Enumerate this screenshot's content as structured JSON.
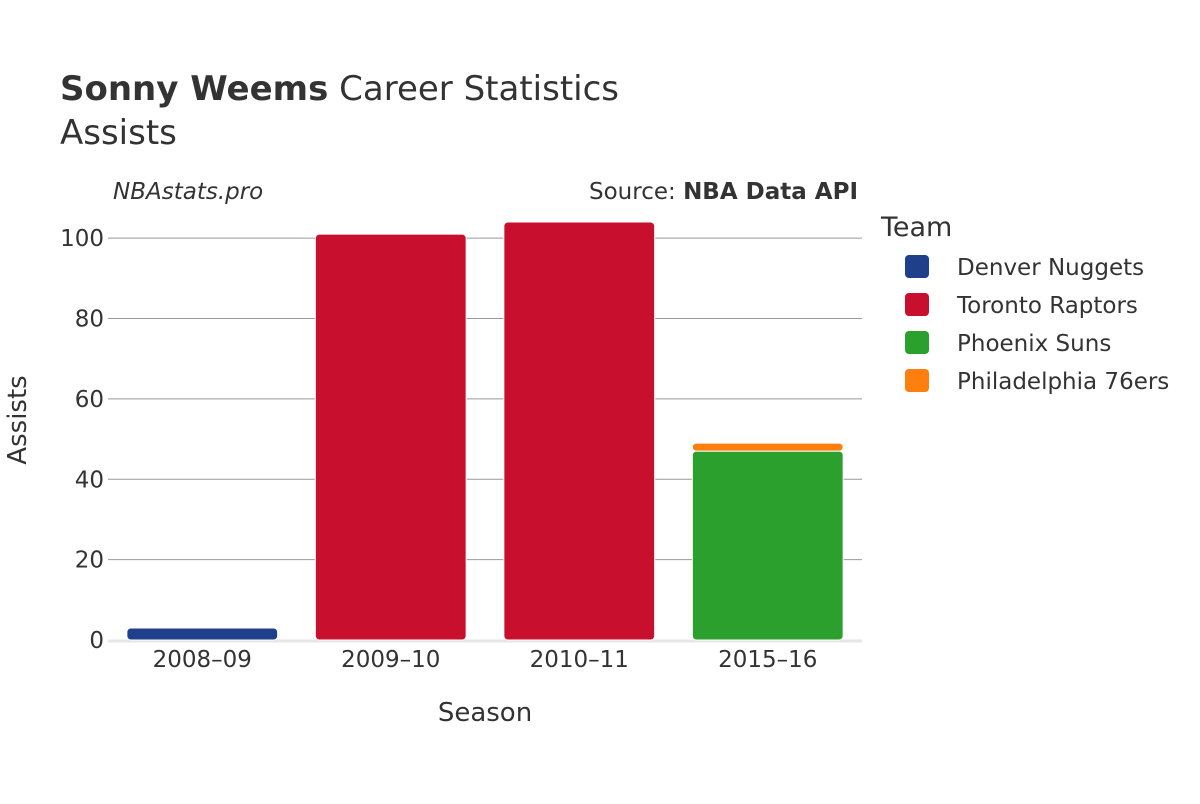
{
  "header": {
    "player_name": "Sonny Weems",
    "title_suffix": " Career Statistics",
    "subtitle": "Assists",
    "watermark": "NBAstats.pro",
    "source_prefix": "Source: ",
    "source_name": "NBA Data API"
  },
  "colors": {
    "denver": "#1f3f8a",
    "toronto": "#c8102e",
    "phoenix": "#2ca02c",
    "philadelphia": "#ff7f0e",
    "grid": "#999999",
    "text": "#333333"
  },
  "chart_data": {
    "type": "bar",
    "stacked": true,
    "title": "Sonny Weems Career Statistics",
    "subtitle": "Assists",
    "xlabel": "Season",
    "ylabel": "Assists",
    "ylim": [
      0,
      107
    ],
    "yticks": [
      0,
      20,
      40,
      60,
      80,
      100
    ],
    "grid": true,
    "legend_title": "Team",
    "legend_position": "right",
    "categories": [
      "2008–09",
      "2009–10",
      "2010–11",
      "2015–16"
    ],
    "series": [
      {
        "name": "Denver Nuggets",
        "color": "#1f3f8a",
        "values": [
          3,
          0,
          0,
          0
        ]
      },
      {
        "name": "Toronto Raptors",
        "color": "#c8102e",
        "values": [
          0,
          101,
          104,
          0
        ]
      },
      {
        "name": "Phoenix Suns",
        "color": "#2ca02c",
        "values": [
          0,
          0,
          0,
          47
        ]
      },
      {
        "name": "Philadelphia 76ers",
        "color": "#ff7f0e",
        "values": [
          0,
          0,
          0,
          2
        ]
      }
    ]
  }
}
